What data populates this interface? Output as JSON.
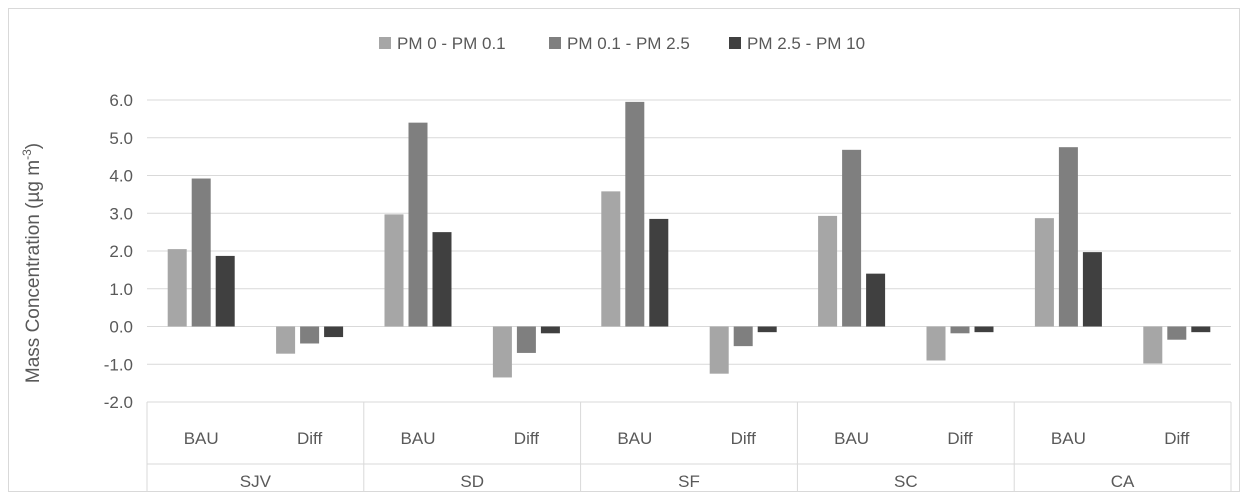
{
  "chart_data": {
    "type": "bar",
    "ylabel": "Mass Concentration (µg m",
    "ylabel_superscript": "-3",
    "ylabel_close": ")",
    "ylim": [
      -2.0,
      6.0
    ],
    "ytick_step": 1.0,
    "ytick_labels": [
      "-2.0",
      "-1.0",
      "0.0",
      "1.0",
      "2.0",
      "3.0",
      "4.0",
      "5.0",
      "6.0"
    ],
    "grid": true,
    "legend_position": "top",
    "groups": [
      "SJV",
      "SD",
      "SF",
      "SC",
      "CA"
    ],
    "subcategories": [
      "BAU",
      "Diff"
    ],
    "categories": [
      "BAU",
      "Diff",
      "BAU",
      "Diff",
      "BAU",
      "Diff",
      "BAU",
      "Diff",
      "BAU",
      "Diff"
    ],
    "series": [
      {
        "name": "PM 0 - PM 0.1",
        "color": "#a6a6a6",
        "values": [
          2.05,
          -0.72,
          2.97,
          -1.35,
          3.58,
          -1.25,
          2.93,
          -0.9,
          2.87,
          -0.98
        ]
      },
      {
        "name": "PM 0.1 - PM 2.5",
        "color": "#7f7f7f",
        "values": [
          3.92,
          -0.45,
          5.4,
          -0.7,
          5.95,
          -0.52,
          4.68,
          -0.18,
          4.75,
          -0.35
        ]
      },
      {
        "name": "PM 2.5 - PM 10",
        "color": "#404040",
        "values": [
          1.87,
          -0.28,
          2.5,
          -0.18,
          2.85,
          -0.15,
          1.4,
          -0.15,
          1.97,
          -0.15
        ]
      }
    ]
  }
}
